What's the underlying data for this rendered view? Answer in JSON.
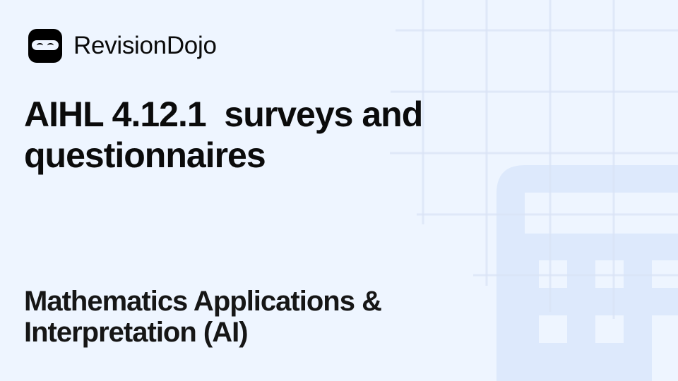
{
  "brand": {
    "name": "RevisionDojo",
    "icon": "ninja-mask-icon"
  },
  "title": "AIHL 4.12.1  surveys and questionnaires",
  "subtitle": "Mathematics Applications & Interpretation (AI)",
  "colors": {
    "background": "#eef5ff",
    "grid_line": "#e3ebf9",
    "calculator": "#dde9fc",
    "text": "#0b0b0b"
  }
}
